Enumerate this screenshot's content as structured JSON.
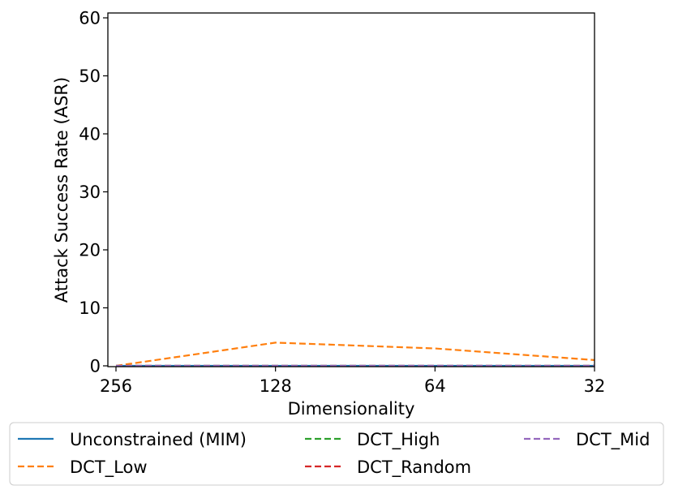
{
  "chart_data": {
    "type": "line",
    "title": "",
    "xlabel": "Dimensionality",
    "ylabel": "Attack Success Rate (ASR)",
    "x": [
      "256",
      "128",
      "64",
      "32"
    ],
    "ylim": [
      0,
      60
    ],
    "yticks": [
      "0",
      "10",
      "20",
      "30",
      "40",
      "50",
      "60"
    ],
    "grid": false,
    "legend_position": "bottom-center, outside",
    "series": [
      {
        "name": "Unconstrained (MIM)",
        "values": [
          0,
          0,
          0,
          0
        ],
        "color": "#1f77b4",
        "style": "solid"
      },
      {
        "name": "DCT_Low",
        "values": [
          0,
          4,
          3,
          1
        ],
        "color": "#ff7f0e",
        "style": "dashed"
      },
      {
        "name": "DCT_High",
        "values": [
          0,
          0,
          0,
          0
        ],
        "color": "#2ca02c",
        "style": "dashed"
      },
      {
        "name": "DCT_Random",
        "values": [
          0,
          0,
          0,
          0
        ],
        "color": "#d62728",
        "style": "dashed"
      },
      {
        "name": "DCT_Mid",
        "values": [
          0,
          0,
          0,
          0
        ],
        "color": "#9467bd",
        "style": "dashed"
      }
    ]
  }
}
